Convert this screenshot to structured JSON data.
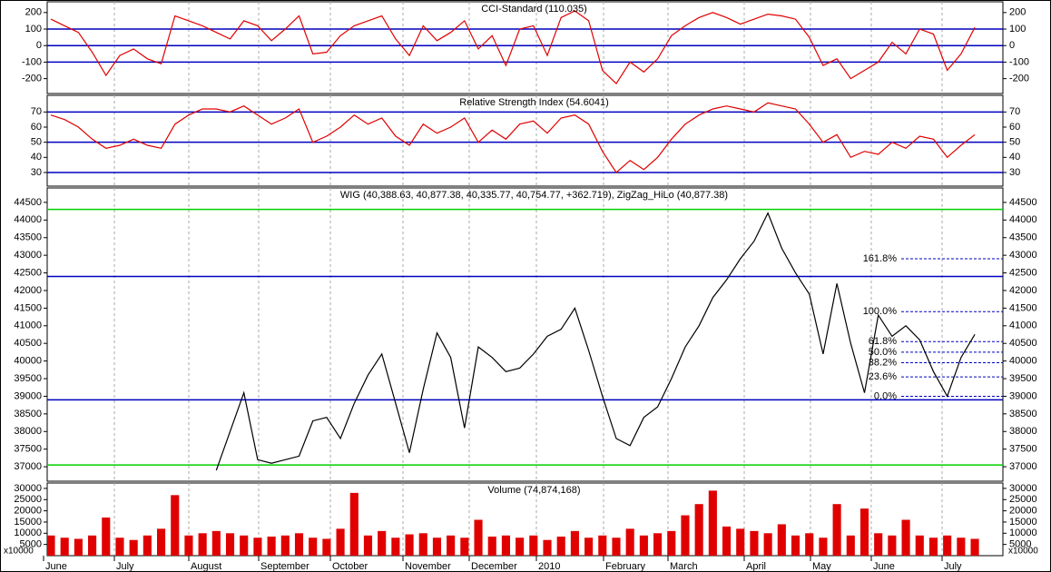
{
  "chart_data": [
    {
      "type": "line",
      "title": "CCI-Standard (110.035)",
      "color": "#e00000",
      "ylim": [
        -290,
        265
      ],
      "yticks": [
        -200,
        -100,
        0,
        100,
        200
      ],
      "hlines": [
        {
          "value": 100,
          "color": "#0000c0"
        },
        {
          "value": 0,
          "color": "#0000c0"
        },
        {
          "value": -100,
          "color": "#0000c0"
        }
      ],
      "values": [
        160,
        120,
        80,
        -40,
        -180,
        -60,
        -20,
        -80,
        -110,
        180,
        150,
        120,
        80,
        40,
        150,
        120,
        30,
        100,
        180,
        -50,
        -40,
        60,
        120,
        150,
        180,
        40,
        -60,
        120,
        30,
        80,
        150,
        -20,
        60,
        -120,
        100,
        120,
        -60,
        170,
        210,
        150,
        -150,
        -230,
        -100,
        -160,
        -80,
        60,
        120,
        170,
        200,
        170,
        130,
        160,
        190,
        180,
        160,
        50,
        -120,
        -80,
        -200,
        -150,
        -100,
        20,
        -50,
        100,
        70,
        -150,
        -50,
        110,
        null,
        null
      ]
    },
    {
      "type": "line",
      "title": "Relative Strength Index (54.6041)",
      "color": "#e00000",
      "ylim": [
        21,
        81
      ],
      "yticks": [
        30,
        40,
        50,
        60,
        70
      ],
      "hlines": [
        {
          "value": 70,
          "color": "#0000c0"
        },
        {
          "value": 50,
          "color": "#0000c0"
        },
        {
          "value": 30,
          "color": "#0000c0"
        }
      ],
      "values": [
        68,
        65,
        60,
        52,
        46,
        48,
        52,
        48,
        46,
        62,
        68,
        72,
        72,
        70,
        74,
        68,
        62,
        66,
        72,
        50,
        54,
        60,
        68,
        62,
        66,
        54,
        48,
        62,
        56,
        60,
        66,
        50,
        58,
        52,
        62,
        64,
        56,
        66,
        68,
        62,
        44,
        30,
        38,
        32,
        40,
        52,
        62,
        68,
        72,
        74,
        72,
        70,
        76,
        74,
        72,
        62,
        50,
        55,
        40,
        44,
        42,
        50,
        46,
        54,
        52,
        40,
        48,
        55,
        null,
        null
      ]
    },
    {
      "type": "line",
      "title": "WIG (40,388.63, 40,877.38, 40,335.77, 40,754.77, +362.719), ZigZag_HiLo (40,877.38)",
      "color": "#000000",
      "ylim": [
        36590,
        44910
      ],
      "yticks": [
        37000,
        37500,
        38000,
        38500,
        39000,
        39500,
        40000,
        40500,
        41000,
        41500,
        42000,
        42500,
        43000,
        43500,
        44000,
        44500
      ],
      "hlines": [
        {
          "value": 44300,
          "color": "#00d000"
        },
        {
          "value": 42400,
          "color": "#0000c0"
        },
        {
          "value": 38900,
          "color": "#0000c0"
        },
        {
          "value": 37050,
          "color": "#00d000"
        }
      ],
      "fib": [
        {
          "label": "161.8%",
          "value": 42900
        },
        {
          "label": "100.0%",
          "value": 41400
        },
        {
          "label": "61.8%",
          "value": 40550
        },
        {
          "label": "50.0%",
          "value": 40250
        },
        {
          "label": "38.2%",
          "value": 39950
        },
        {
          "label": "23.6%",
          "value": 39550
        },
        {
          "label": "0.0%",
          "value": 39000
        }
      ],
      "values": [
        null,
        null,
        null,
        null,
        null,
        null,
        null,
        null,
        null,
        null,
        null,
        null,
        36900,
        38000,
        39100,
        37200,
        37100,
        37200,
        37300,
        38300,
        38400,
        37800,
        38800,
        39600,
        40200,
        38800,
        37400,
        39200,
        40800,
        40100,
        38100,
        40400,
        40100,
        39700,
        39800,
        40200,
        40700,
        40900,
        41500,
        40300,
        39000,
        37800,
        37600,
        38400,
        38700,
        39500,
        40400,
        41000,
        41800,
        42300,
        42900,
        43400,
        44200,
        43200,
        42500,
        41900,
        40200,
        42200,
        40500,
        39100,
        41300,
        40700,
        41000,
        40600,
        39700,
        39000,
        40100,
        40755,
        null,
        null
      ]
    },
    {
      "type": "bar",
      "title": "Volume (74,874,168)",
      "color": "#e00000",
      "axis_note": "x10000",
      "ylim": [
        0,
        32400
      ],
      "yticks": [
        5000,
        10000,
        15000,
        20000,
        25000,
        30000
      ],
      "values": [
        9000,
        8000,
        7500,
        9000,
        17000,
        8000,
        7000,
        9000,
        12000,
        27000,
        9000,
        10000,
        11000,
        10000,
        9000,
        8000,
        8500,
        9000,
        10000,
        8000,
        7500,
        12000,
        28000,
        9000,
        11000,
        8000,
        9500,
        10000,
        8000,
        9000,
        8000,
        16000,
        8500,
        9000,
        8000,
        9000,
        7000,
        8500,
        11000,
        8000,
        9000,
        8000,
        12000,
        9000,
        10000,
        11000,
        18000,
        23000,
        29000,
        13000,
        12000,
        11000,
        10000,
        14000,
        9000,
        10000,
        8000,
        23000,
        9000,
        21000,
        10000,
        9000,
        16000,
        9000,
        8000,
        9000,
        8000,
        7500,
        null,
        null
      ]
    }
  ],
  "x_axis": {
    "labels": [
      "June",
      "July",
      "August",
      "September",
      "October",
      "November",
      "December",
      "2010",
      "February",
      "March",
      "April",
      "May",
      "June",
      "July"
    ]
  }
}
